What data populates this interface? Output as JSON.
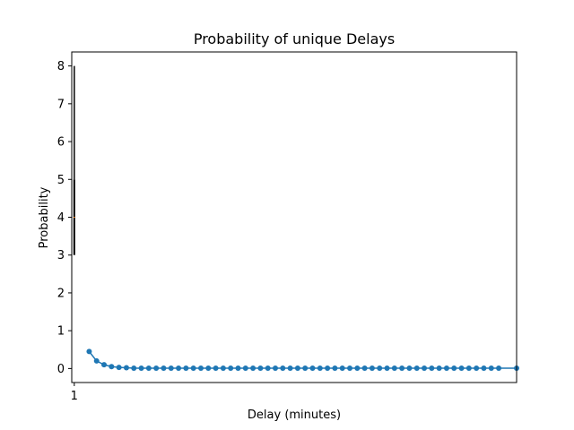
{
  "chart_data": {
    "type": "line",
    "title": "Probability of unique Delays",
    "xlabel": "Delay (minutes)",
    "ylabel": "Probability",
    "xlim": [
      0.83,
      30.7
    ],
    "ylim": [
      -0.37,
      8.37
    ],
    "x_ticks": [
      1
    ],
    "y_ticks": [
      0,
      1,
      2,
      3,
      4,
      5,
      6,
      7,
      8
    ],
    "grid": false,
    "boxplot": {
      "x": 1,
      "whisker_low": 3,
      "q1": 3,
      "median": 4,
      "q3": 5,
      "whisker_high": 8
    },
    "series": [
      {
        "x": [
          2,
          2.5,
          3,
          3.5,
          4,
          4.5,
          5,
          5.5,
          6,
          6.5,
          7,
          7.5,
          8,
          8.5,
          9,
          9.5,
          10,
          10.5,
          11,
          11.5,
          12,
          12.5,
          13,
          13.5,
          14,
          14.5,
          15,
          15.5,
          16,
          16.5,
          17,
          17.5,
          18,
          18.5,
          19,
          19.5,
          20,
          20.5,
          21,
          21.5,
          22,
          22.5,
          23,
          23.5,
          24,
          24.5,
          25,
          25.5,
          26,
          26.5,
          27,
          27.5,
          28,
          28.5,
          29,
          29.5,
          30.7
        ],
        "values": [
          0.45,
          0.2,
          0.1,
          0.05,
          0.03,
          0.02,
          0.01,
          0.01,
          0.01,
          0.01,
          0.01,
          0.01,
          0.01,
          0.01,
          0.01,
          0.01,
          0.01,
          0.01,
          0.01,
          0.01,
          0.01,
          0.01,
          0.01,
          0.01,
          0.01,
          0.01,
          0.01,
          0.01,
          0.01,
          0.01,
          0.01,
          0.01,
          0.01,
          0.01,
          0.01,
          0.01,
          0.01,
          0.01,
          0.01,
          0.01,
          0.01,
          0.01,
          0.01,
          0.01,
          0.01,
          0.01,
          0.01,
          0.01,
          0.01,
          0.01,
          0.01,
          0.01,
          0.01,
          0.01,
          0.01,
          0.01,
          0.01
        ],
        "color": "#1f77b4"
      }
    ],
    "colors": {
      "line": "#1f77b4",
      "box": "#000000",
      "median": "#ff7f0e"
    }
  }
}
